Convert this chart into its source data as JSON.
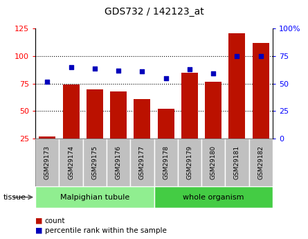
{
  "title": "GDS732 / 142123_at",
  "samples": [
    "GSM29173",
    "GSM29174",
    "GSM29175",
    "GSM29176",
    "GSM29177",
    "GSM29178",
    "GSM29179",
    "GSM29180",
    "GSM29181",
    "GSM29182"
  ],
  "counts": [
    27,
    74,
    70,
    68,
    61,
    52,
    85,
    77,
    121,
    112
  ],
  "percentile_ranks": [
    52,
    65,
    64,
    62,
    61,
    55,
    63,
    59,
    75,
    75
  ],
  "tissue_groups": [
    {
      "label": "Malpighian tubule",
      "start": 0,
      "end": 5
    },
    {
      "label": "whole organism",
      "start": 5,
      "end": 10
    }
  ],
  "tissue_color_light": "#90EE90",
  "tissue_color_dark": "#44CC44",
  "bar_color": "#BB1100",
  "dot_color": "#0000BB",
  "left_ylim": [
    25,
    125
  ],
  "left_yticks": [
    25,
    50,
    75,
    100,
    125
  ],
  "right_ylim": [
    0,
    100
  ],
  "right_yticks": [
    0,
    25,
    50,
    75,
    100
  ],
  "right_yticklabels": [
    "0",
    "25",
    "50",
    "75",
    "100%"
  ],
  "hlines": [
    50,
    75,
    100
  ],
  "legend_count_label": "count",
  "legend_pct_label": "percentile rank within the sample",
  "tissue_label": "tissue",
  "background_color": "#ffffff",
  "xlabel_bg_color": "#C0C0C0",
  "xlabel_border_color": "#888888"
}
